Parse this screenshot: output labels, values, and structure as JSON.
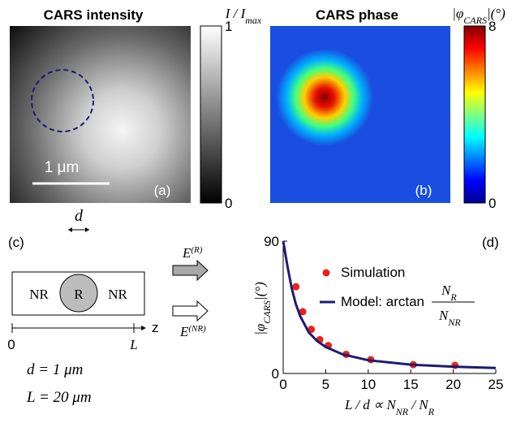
{
  "panel_a": {
    "label": "(a)",
    "title": "CARS intensity",
    "scale_bar": "1 μm",
    "colorbar_label": [
      {
        "t": "I / I"
      },
      {
        "sub": "max"
      }
    ],
    "colorbar_range": [
      0,
      1
    ],
    "colorbar_ticks": [
      1,
      0
    ]
  },
  "panel_b": {
    "label": "(b)",
    "title": "CARS phase",
    "colorbar_label": [
      {
        "t": "|φ"
      },
      {
        "sub": "CARS"
      },
      {
        "t": "|(°)"
      }
    ],
    "colorbar_range": [
      0,
      8
    ],
    "colorbar_ticks": [
      8,
      0
    ]
  },
  "panel_c": {
    "label": "(c)",
    "width_label": "d",
    "regions": [
      "NR",
      "R",
      "NR"
    ],
    "axis_label": "z",
    "axis_ticks": [
      "0",
      "L"
    ],
    "fields": [
      [
        {
          "t": "E"
        },
        {
          "sup": "(R)"
        }
      ],
      [
        {
          "t": "E"
        },
        {
          "sup": "(NR)"
        }
      ]
    ],
    "params": [
      "d = 1 μm",
      "L = 20 μm"
    ]
  },
  "chart_data": {
    "type": "scatter",
    "panel_label": "(d)",
    "x_label": [
      {
        "t": "L / d ∝ N"
      },
      {
        "sub": "NR"
      },
      {
        "t": " / N"
      },
      {
        "sub": "R"
      }
    ],
    "y_label": [
      {
        "t": "|φ"
      },
      {
        "sub": "CARS"
      },
      {
        "t": "|(°)"
      }
    ],
    "xlim": [
      0,
      25
    ],
    "ylim": [
      0,
      90
    ],
    "xticks": [
      0,
      5,
      10,
      15,
      20,
      25
    ],
    "yticks": [
      0,
      90
    ],
    "series": [
      {
        "name": "Simulation",
        "type": "scatter",
        "color": "#e8221b",
        "x": [
          1.5,
          2.3,
          3.3,
          4.3,
          5.3,
          7.4,
          10.3,
          15.3,
          20.2
        ],
        "values": [
          59,
          42,
          30,
          23,
          19,
          13,
          9.4,
          6,
          5.5
        ]
      },
      {
        "name": "Model: arctan",
        "type": "line",
        "color": "#1c1c72",
        "x": [
          0,
          0.5,
          1,
          1.5,
          2,
          3,
          4,
          5,
          7,
          10,
          15,
          20,
          25
        ],
        "values": [
          90,
          73,
          58,
          47,
          39,
          28,
          22,
          18,
          13,
          9,
          6,
          4.6,
          3.7
        ]
      }
    ],
    "legend_fraction": {
      "numerator": [
        {
          "t": "N"
        },
        {
          "sub": "R"
        }
      ],
      "denominator": [
        {
          "t": "N"
        },
        {
          "sub": "NR"
        }
      ]
    }
  }
}
